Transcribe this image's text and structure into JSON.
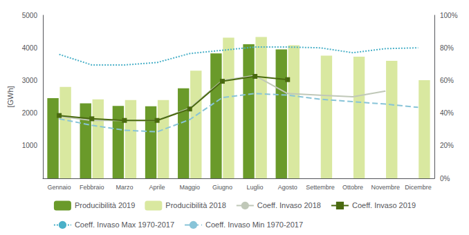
{
  "chart_data": {
    "type": "bar",
    "categories": [
      "Gennaio",
      "Febbraio",
      "Marzo",
      "Aprile",
      "Maggio",
      "Giugno",
      "Luglio",
      "Agosto",
      "Settembre",
      "Ottobre",
      "Novembre",
      "Dicembre"
    ],
    "ylabel": "[GWh]",
    "ylim": [
      0,
      5000
    ],
    "yticks": [
      1000,
      2000,
      3000,
      4000,
      5000
    ],
    "y2lim": [
      0,
      1.0
    ],
    "y2ticks": [
      {
        "value": 0.0,
        "label": "0%"
      },
      {
        "value": 0.2,
        "label": "20%"
      },
      {
        "value": 0.4,
        "label": "40%"
      },
      {
        "value": 0.6,
        "label": "60%"
      },
      {
        "value": 0.8,
        "label": "80%"
      },
      {
        "value": 1.0,
        "label": "100%"
      }
    ],
    "grid": false,
    "legend": "bottom",
    "series": [
      {
        "name": "Producibilità 2019",
        "type": "bar",
        "color": "#6a9a2a",
        "values": [
          2460,
          2300,
          2220,
          2210,
          2760,
          3830,
          4110,
          3950,
          null,
          null,
          null,
          null
        ]
      },
      {
        "name": "Producibilità 2018",
        "type": "bar",
        "color": "#d9e8a0",
        "values": [
          2800,
          2420,
          2400,
          2400,
          3300,
          4310,
          4330,
          4080,
          3760,
          3730,
          3600,
          3010
        ]
      },
      {
        "name": "Coeff. Invaso 2018",
        "type": "line",
        "axis": "y2",
        "color": "#c0c8b8",
        "line_style": "solid",
        "values": [
          0.38,
          0.355,
          0.355,
          0.355,
          0.43,
          0.6,
          0.63,
          0.52,
          0.51,
          0.5,
          0.535,
          null
        ]
      },
      {
        "name": "Coeff. Invaso 2019",
        "type": "line",
        "axis": "y2",
        "color": "#4a6a10",
        "line_style": "solid",
        "marker": "square",
        "values": [
          0.385,
          0.365,
          0.355,
          0.355,
          0.425,
          0.595,
          0.625,
          0.605,
          null,
          null,
          null,
          null
        ]
      },
      {
        "name": "Coeff. Invaso Max 1970-2017",
        "type": "line",
        "axis": "y2",
        "color": "#4ab0c8",
        "line_style": "dotted",
        "values": [
          0.76,
          0.695,
          0.695,
          0.71,
          0.765,
          0.785,
          0.805,
          0.805,
          0.8,
          0.77,
          0.795,
          0.8
        ]
      },
      {
        "name": "Coeff. Invaso Min 1970-2017",
        "type": "line",
        "axis": "y2",
        "color": "#88c4d8",
        "line_style": "dashed",
        "values": [
          0.365,
          0.325,
          0.295,
          0.285,
          0.36,
          0.495,
          0.52,
          0.51,
          0.485,
          0.47,
          0.455,
          0.435
        ]
      }
    ]
  }
}
